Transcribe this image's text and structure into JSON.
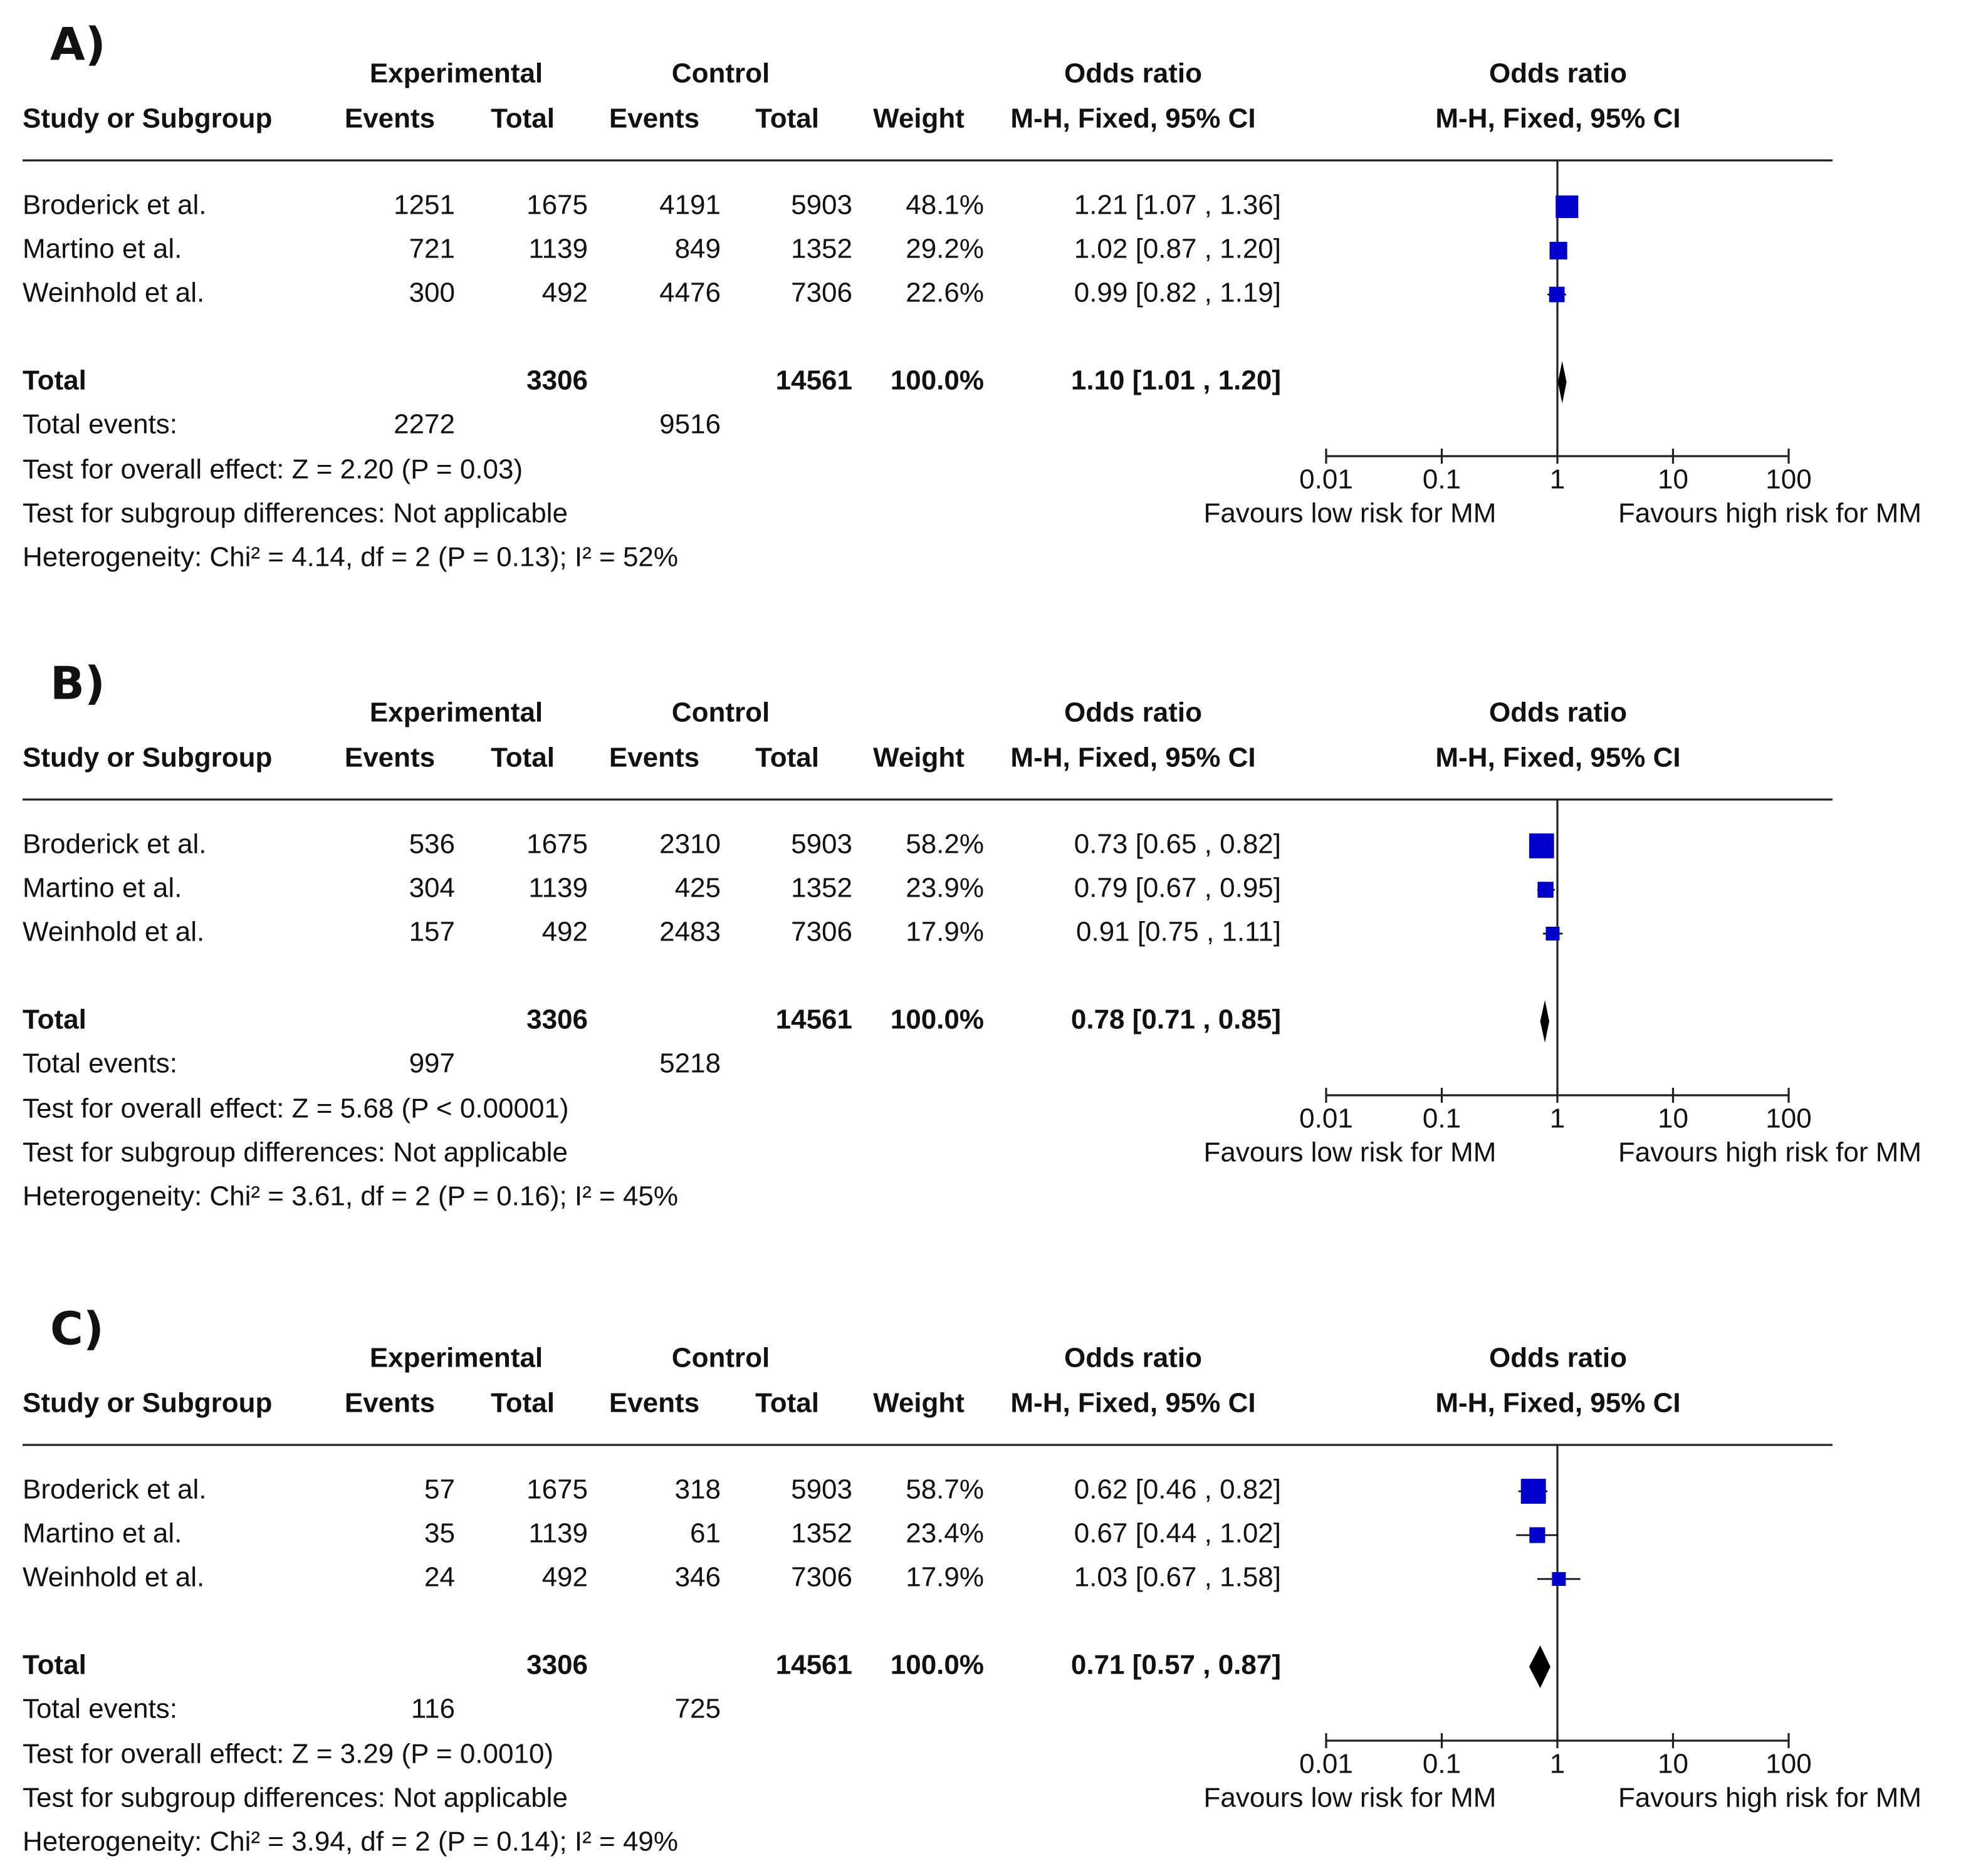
{
  "chart_data": [
    {
      "type": "forest",
      "panel": "A)",
      "headers": {
        "experimental": "Experimental",
        "control": "Control",
        "or_group": "Odds ratio",
        "plot_group": "Odds ratio",
        "study": "Study or Subgroup",
        "exp_events": "Events",
        "exp_total": "Total",
        "ctrl_events": "Events",
        "ctrl_total": "Total",
        "weight": "Weight",
        "or_method": "M-H, Fixed, 95% CI",
        "plot_method": "M-H, Fixed, 95% CI"
      },
      "studies": [
        {
          "name": "Broderick et al.",
          "exp_events": 1251,
          "exp_total": 1675,
          "ctrl_events": 4191,
          "ctrl_total": 5903,
          "weight": 48.1,
          "weight_label": "48.1%",
          "or": 1.21,
          "ci": [
            1.07,
            1.36
          ],
          "or_label": "1.21 [1.07 , 1.36]"
        },
        {
          "name": "Martino et al.",
          "exp_events": 721,
          "exp_total": 1139,
          "ctrl_events": 849,
          "ctrl_total": 1352,
          "weight": 29.2,
          "weight_label": "29.2%",
          "or": 1.02,
          "ci": [
            0.87,
            1.2
          ],
          "or_label": "1.02 [0.87 , 1.20]"
        },
        {
          "name": "Weinhold et al.",
          "exp_events": 300,
          "exp_total": 492,
          "ctrl_events": 4476,
          "ctrl_total": 7306,
          "weight": 22.6,
          "weight_label": "22.6%",
          "or": 0.99,
          "ci": [
            0.82,
            1.19
          ],
          "or_label": "0.99 [0.82 , 1.19]"
        }
      ],
      "total": {
        "label": "Total",
        "exp_total": 3306,
        "ctrl_total": 14561,
        "weight": 100.0,
        "weight_label": "100.0%",
        "or": 1.1,
        "ci": [
          1.01,
          1.2
        ],
        "or_label": "1.10 [1.01 , 1.20]"
      },
      "total_events": {
        "label": "Total events:",
        "exp": 2272,
        "ctrl": 9516
      },
      "notes": [
        "Test for overall effect: Z = 2.20 (P = 0.03)",
        "Test for subgroup differences: Not applicable",
        "Heterogeneity: Chi² = 4.14, df = 2 (P = 0.13); I² = 52%"
      ],
      "log_x": true,
      "xlim": [
        0.01,
        100
      ],
      "xticks": [
        0.01,
        0.1,
        1,
        10,
        100
      ],
      "xlabel_left": "Favours low risk for MM",
      "xlabel_right": "Favours high risk for MM",
      "study_color": "#0000cc",
      "total_color": "#000000"
    },
    {
      "type": "forest",
      "panel": "B)",
      "headers": {
        "experimental": "Experimental",
        "control": "Control",
        "or_group": "Odds ratio",
        "plot_group": "Odds ratio",
        "study": "Study or Subgroup",
        "exp_events": "Events",
        "exp_total": "Total",
        "ctrl_events": "Events",
        "ctrl_total": "Total",
        "weight": "Weight",
        "or_method": "M-H, Fixed, 95% CI",
        "plot_method": "M-H, Fixed, 95% CI"
      },
      "studies": [
        {
          "name": "Broderick et al.",
          "exp_events": 536,
          "exp_total": 1675,
          "ctrl_events": 2310,
          "ctrl_total": 5903,
          "weight": 58.2,
          "weight_label": "58.2%",
          "or": 0.73,
          "ci": [
            0.65,
            0.82
          ],
          "or_label": "0.73 [0.65 , 0.82]"
        },
        {
          "name": "Martino et al.",
          "exp_events": 304,
          "exp_total": 1139,
          "ctrl_events": 425,
          "ctrl_total": 1352,
          "weight": 23.9,
          "weight_label": "23.9%",
          "or": 0.79,
          "ci": [
            0.67,
            0.95
          ],
          "or_label": "0.79 [0.67 , 0.95]"
        },
        {
          "name": "Weinhold et al.",
          "exp_events": 157,
          "exp_total": 492,
          "ctrl_events": 2483,
          "ctrl_total": 7306,
          "weight": 17.9,
          "weight_label": "17.9%",
          "or": 0.91,
          "ci": [
            0.75,
            1.11
          ],
          "or_label": "0.91 [0.75 , 1.11]"
        }
      ],
      "total": {
        "label": "Total",
        "exp_total": 3306,
        "ctrl_total": 14561,
        "weight": 100.0,
        "weight_label": "100.0%",
        "or": 0.78,
        "ci": [
          0.71,
          0.85
        ],
        "or_label": "0.78 [0.71 , 0.85]"
      },
      "total_events": {
        "label": "Total events:",
        "exp": 997,
        "ctrl": 5218
      },
      "notes": [
        "Test for overall effect: Z = 5.68 (P < 0.00001)",
        "Test for subgroup differences: Not applicable",
        "Heterogeneity: Chi² = 3.61, df = 2 (P = 0.16); I² = 45%"
      ],
      "log_x": true,
      "xlim": [
        0.01,
        100
      ],
      "xticks": [
        0.01,
        0.1,
        1,
        10,
        100
      ],
      "xlabel_left": "Favours low risk for MM",
      "xlabel_right": "Favours high risk for MM",
      "study_color": "#0000cc",
      "total_color": "#000000"
    },
    {
      "type": "forest",
      "panel": "C)",
      "headers": {
        "experimental": "Experimental",
        "control": "Control",
        "or_group": "Odds ratio",
        "plot_group": "Odds ratio",
        "study": "Study or Subgroup",
        "exp_events": "Events",
        "exp_total": "Total",
        "ctrl_events": "Events",
        "ctrl_total": "Total",
        "weight": "Weight",
        "or_method": "M-H, Fixed, 95% CI",
        "plot_method": "M-H, Fixed, 95% CI"
      },
      "studies": [
        {
          "name": "Broderick et al.",
          "exp_events": 57,
          "exp_total": 1675,
          "ctrl_events": 318,
          "ctrl_total": 5903,
          "weight": 58.7,
          "weight_label": "58.7%",
          "or": 0.62,
          "ci": [
            0.46,
            0.82
          ],
          "or_label": "0.62 [0.46 , 0.82]"
        },
        {
          "name": "Martino et al.",
          "exp_events": 35,
          "exp_total": 1139,
          "ctrl_events": 61,
          "ctrl_total": 1352,
          "weight": 23.4,
          "weight_label": "23.4%",
          "or": 0.67,
          "ci": [
            0.44,
            1.02
          ],
          "or_label": "0.67 [0.44 , 1.02]"
        },
        {
          "name": "Weinhold et al.",
          "exp_events": 24,
          "exp_total": 492,
          "ctrl_events": 346,
          "ctrl_total": 7306,
          "weight": 17.9,
          "weight_label": "17.9%",
          "or": 1.03,
          "ci": [
            0.67,
            1.58
          ],
          "or_label": "1.03 [0.67 , 1.58]"
        }
      ],
      "total": {
        "label": "Total",
        "exp_total": 3306,
        "ctrl_total": 14561,
        "weight": 100.0,
        "weight_label": "100.0%",
        "or": 0.71,
        "ci": [
          0.57,
          0.87
        ],
        "or_label": "0.71 [0.57 , 0.87]"
      },
      "total_events": {
        "label": "Total events:",
        "exp": 116,
        "ctrl": 725
      },
      "notes": [
        "Test for overall effect: Z = 3.29 (P = 0.0010)",
        "Test for subgroup differences: Not applicable",
        "Heterogeneity: Chi² = 3.94, df = 2 (P = 0.14); I² = 49%"
      ],
      "log_x": true,
      "xlim": [
        0.01,
        100
      ],
      "xticks": [
        0.01,
        0.1,
        1,
        10,
        100
      ],
      "xlabel_left": "Favours low risk for MM",
      "xlabel_right": "Favours high risk for MM",
      "study_color": "#0000cc",
      "total_color": "#000000"
    }
  ]
}
